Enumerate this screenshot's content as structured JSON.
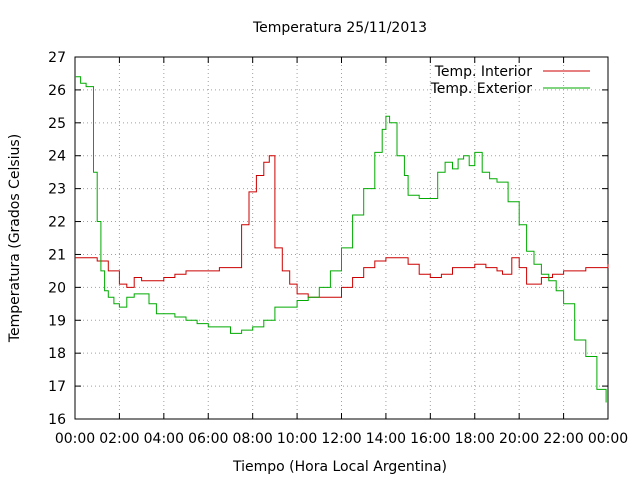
{
  "chart_data": {
    "type": "line",
    "title": "Temperatura 25/11/2013",
    "xlabel": "Tiempo (Hora Local Argentina)",
    "ylabel": "Temperatura (Grados Celsius)",
    "xlim": [
      "00:00",
      "24:00"
    ],
    "ylim": [
      16,
      27
    ],
    "x_ticks": [
      "00:00",
      "02:00",
      "04:00",
      "06:00",
      "08:00",
      "10:00",
      "12:00",
      "14:00",
      "16:00",
      "18:00",
      "20:00",
      "22:00",
      "00:00"
    ],
    "y_ticks": [
      16,
      17,
      18,
      19,
      20,
      21,
      22,
      23,
      24,
      25,
      26,
      27
    ],
    "grid": true,
    "legend_position": "top-right",
    "series": [
      {
        "name": "Temp. Interior",
        "color": "#cc0000",
        "x": [
          "00:00",
          "00:30",
          "01:00",
          "01:30",
          "02:00",
          "02:20",
          "02:40",
          "03:00",
          "03:30",
          "04:00",
          "04:30",
          "05:00",
          "05:30",
          "06:00",
          "06:30",
          "07:00",
          "07:15",
          "07:30",
          "07:50",
          "08:10",
          "08:30",
          "08:45",
          "09:00",
          "09:20",
          "09:40",
          "10:00",
          "10:30",
          "11:00",
          "11:30",
          "12:00",
          "12:30",
          "13:00",
          "13:30",
          "14:00",
          "14:30",
          "15:00",
          "15:30",
          "16:00",
          "16:30",
          "17:00",
          "17:30",
          "18:00",
          "18:30",
          "19:00",
          "19:15",
          "19:40",
          "20:00",
          "20:20",
          "20:40",
          "21:00",
          "21:30",
          "22:00",
          "23:00",
          "23:55",
          "24:00"
        ],
        "y": [
          20.9,
          20.9,
          20.8,
          20.5,
          20.1,
          20.0,
          20.3,
          20.2,
          20.2,
          20.3,
          20.4,
          20.5,
          20.5,
          20.5,
          20.6,
          20.6,
          20.6,
          21.9,
          22.9,
          23.4,
          23.8,
          24.0,
          21.2,
          20.5,
          20.1,
          19.8,
          19.7,
          19.7,
          19.7,
          20.0,
          20.3,
          20.6,
          20.8,
          20.9,
          20.9,
          20.7,
          20.4,
          20.3,
          20.4,
          20.6,
          20.6,
          20.7,
          20.6,
          20.5,
          20.4,
          20.9,
          20.6,
          20.1,
          20.1,
          20.3,
          20.4,
          20.5,
          20.6,
          20.6,
          20.7
        ]
      },
      {
        "name": "Temp. Exterior",
        "color": "#00aa00",
        "x": [
          "00:00",
          "00:15",
          "00:30",
          "00:50",
          "01:00",
          "01:10",
          "01:20",
          "01:30",
          "01:45",
          "02:00",
          "02:20",
          "02:40",
          "03:00",
          "03:20",
          "03:40",
          "04:00",
          "04:30",
          "05:00",
          "05:30",
          "06:00",
          "06:30",
          "07:00",
          "07:30",
          "08:00",
          "08:30",
          "09:00",
          "09:30",
          "10:00",
          "10:30",
          "11:00",
          "11:30",
          "12:00",
          "12:30",
          "13:00",
          "13:30",
          "13:50",
          "14:00",
          "14:10",
          "14:30",
          "14:50",
          "15:00",
          "15:30",
          "16:00",
          "16:20",
          "16:40",
          "17:00",
          "17:15",
          "17:30",
          "17:45",
          "18:00",
          "18:20",
          "18:40",
          "19:00",
          "19:30",
          "20:00",
          "20:20",
          "20:40",
          "21:00",
          "21:20",
          "21:40",
          "22:00",
          "22:30",
          "23:00",
          "23:30",
          "23:55"
        ],
        "y": [
          26.4,
          26.2,
          26.1,
          23.5,
          22.0,
          20.5,
          19.9,
          19.7,
          19.5,
          19.4,
          19.7,
          19.8,
          19.8,
          19.5,
          19.2,
          19.2,
          19.1,
          19.0,
          18.9,
          18.8,
          18.8,
          18.6,
          18.7,
          18.8,
          19.0,
          19.4,
          19.4,
          19.6,
          19.7,
          20.0,
          20.5,
          21.2,
          22.2,
          23.0,
          24.1,
          24.8,
          25.2,
          25.0,
          24.0,
          23.4,
          22.8,
          22.7,
          22.7,
          23.5,
          23.8,
          23.6,
          23.9,
          24.0,
          23.7,
          24.1,
          23.5,
          23.3,
          23.2,
          22.6,
          21.9,
          21.1,
          20.7,
          20.4,
          20.2,
          19.9,
          19.5,
          18.4,
          17.9,
          16.9,
          16.5
        ]
      }
    ]
  }
}
